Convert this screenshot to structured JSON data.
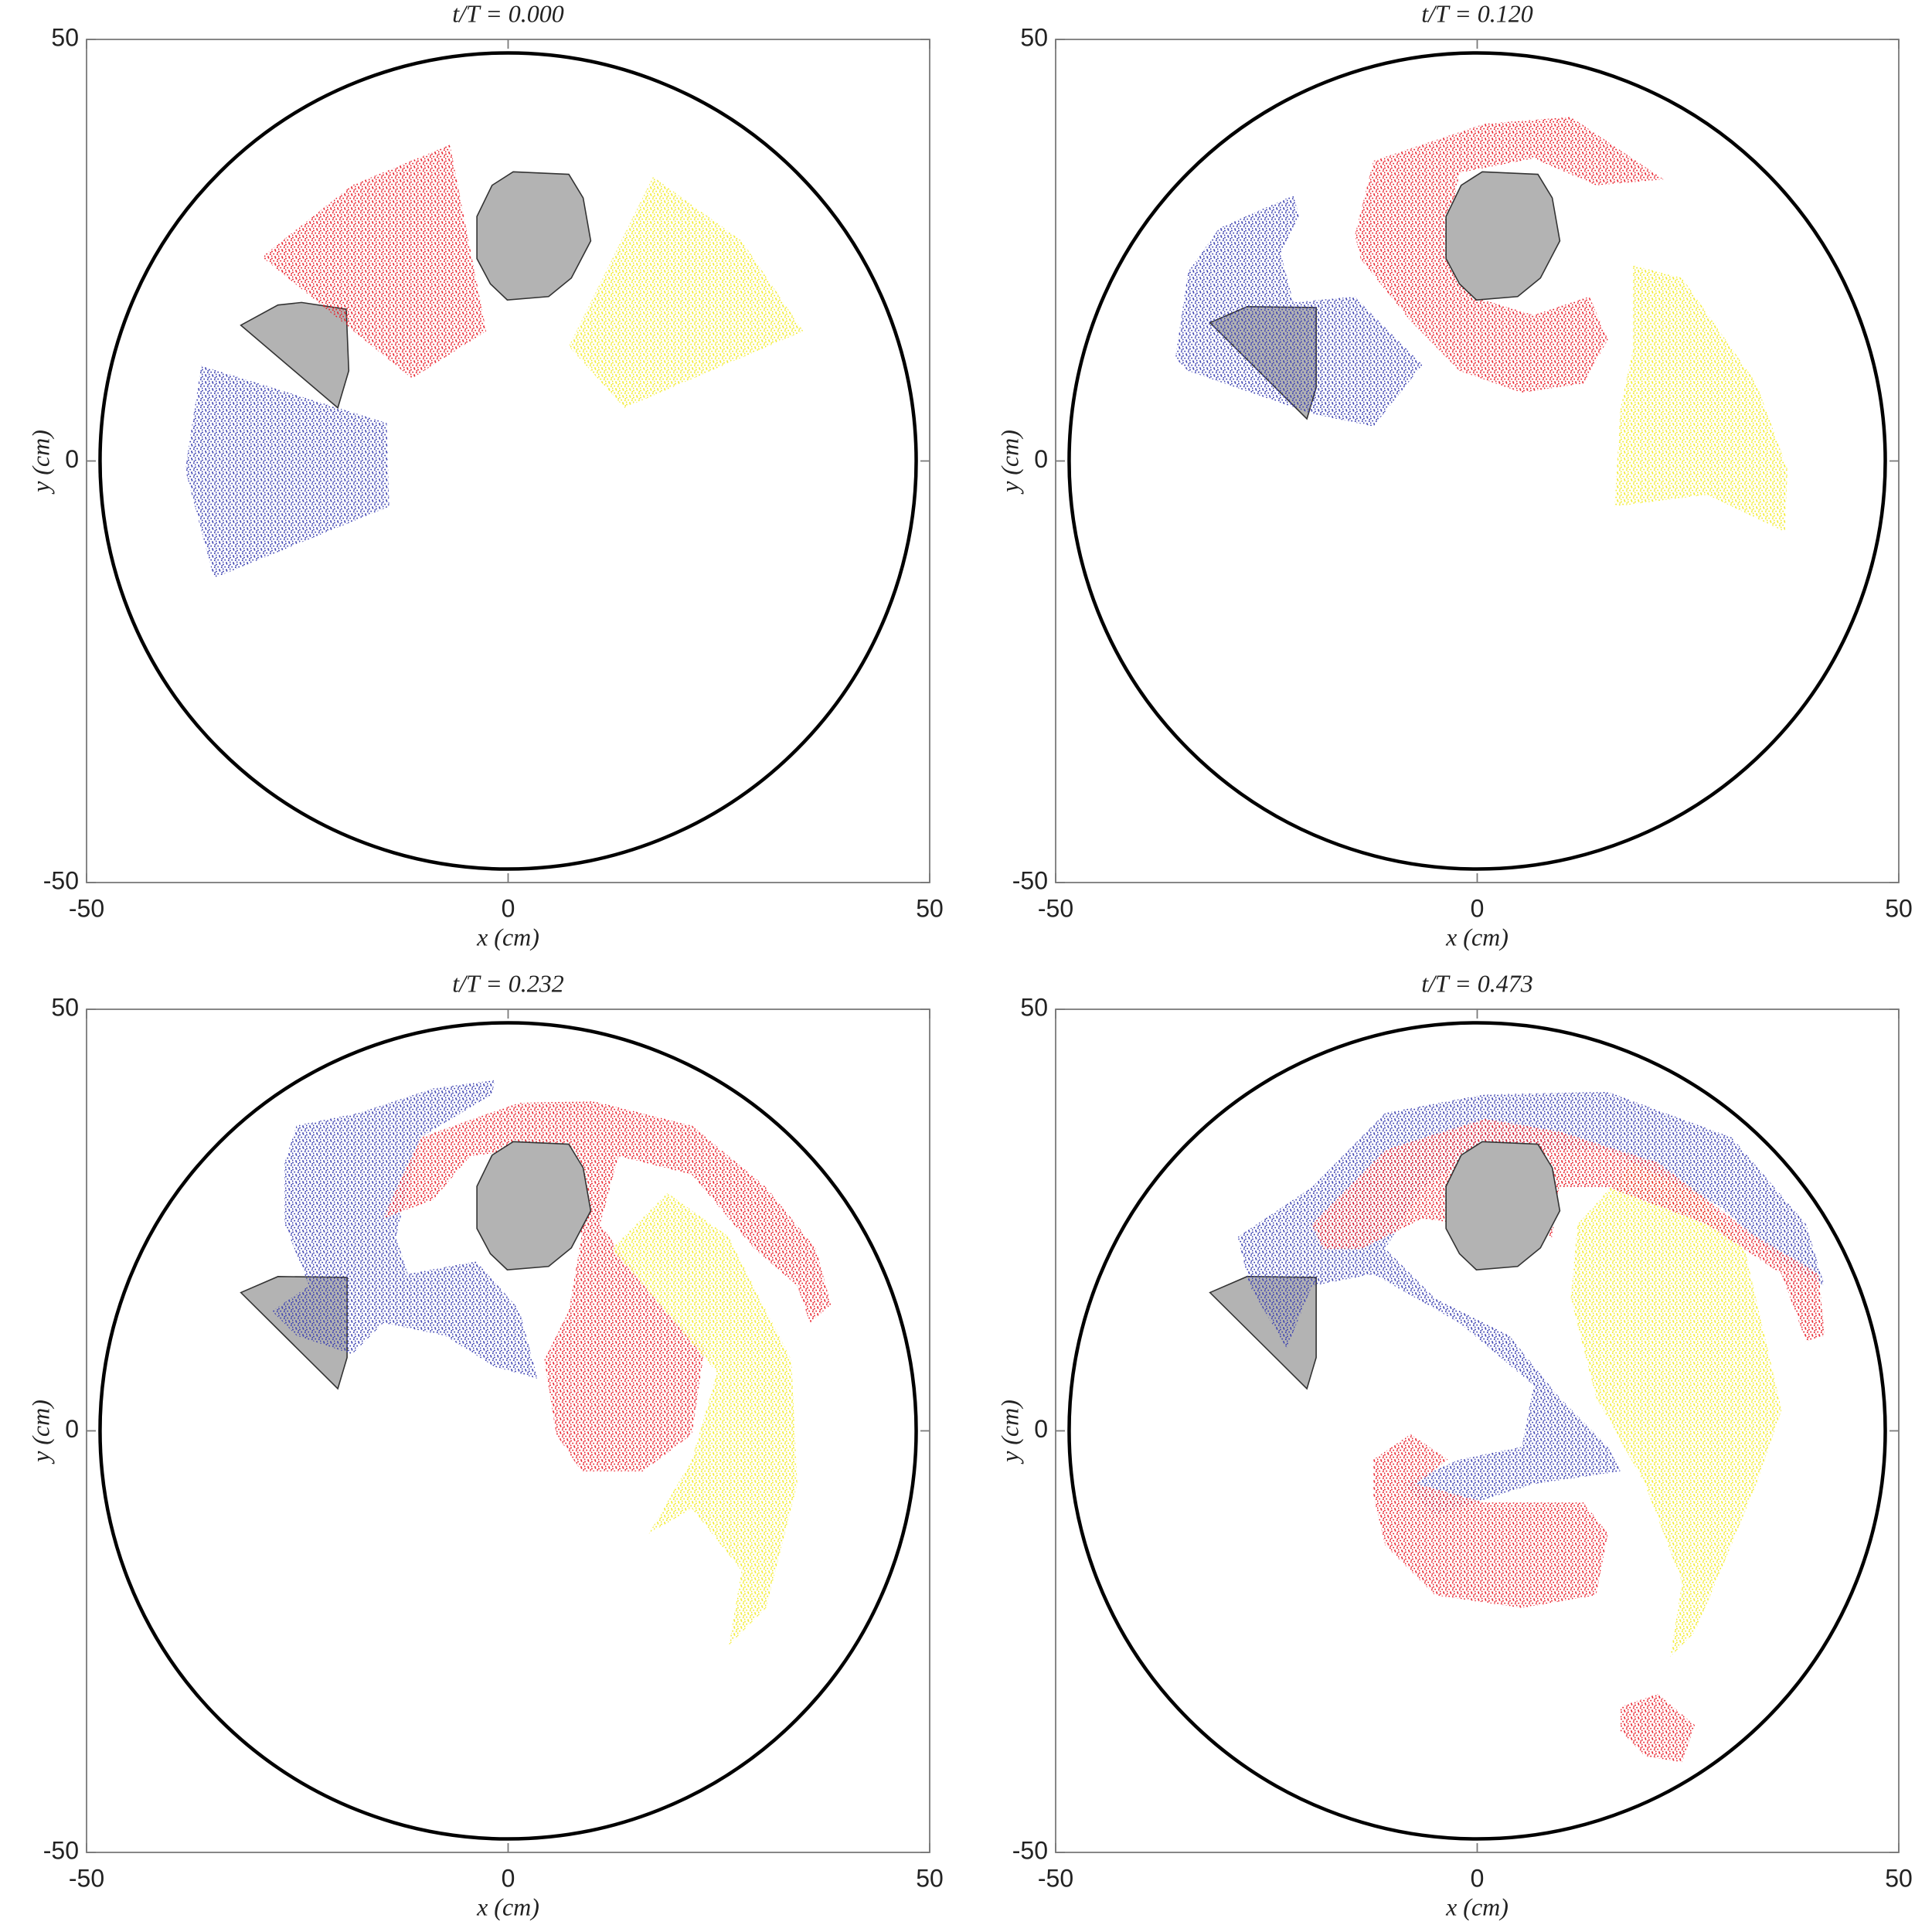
{
  "chart_data": [
    {
      "type": "scatter",
      "title": "t/T = 0.000",
      "xlabel": "x (cm)",
      "ylabel": "y (cm)",
      "xlim": [
        -50,
        50
      ],
      "ylim": [
        -50,
        50
      ],
      "xticks": [
        -50,
        0,
        50
      ],
      "yticks": [
        -50,
        0,
        50
      ],
      "boundary": {
        "r": 48.4,
        "color": "#000000"
      },
      "series": [
        {
          "color": "#b3b3b3",
          "edgecolor": "#333333",
          "x": [
            -31.7,
            -27.3,
            -24.5,
            -19.2,
            -18.9,
            -20.2
          ],
          "y": [
            16.1,
            18.5,
            18.8,
            18.0,
            10.7,
            6.3
          ]
        },
        {
          "color": "#e8202a",
          "x": [
            -29.2,
            -18.5,
            -6.9,
            -2.6,
            -11.4
          ],
          "y": [
            24.2,
            32.7,
            37.5,
            15.4,
            9.8
          ]
        },
        {
          "color": "#f2ea2a",
          "x": [
            7.2,
            17.2,
            27.7,
            35.0,
            13.8
          ],
          "y": [
            13.6,
            33.7,
            26.1,
            15.4,
            6.3
          ]
        },
        {
          "color": "#3a3fb0",
          "x": [
            -36.4,
            -14.4,
            -14.1,
            -34.9,
            -38.3
          ],
          "y": [
            11.3,
            4.5,
            -5.4,
            -13.9,
            -1.0
          ]
        },
        {
          "color": "#b3b3b3",
          "edgecolor": "#333333",
          "x": [
            -3.7,
            -1.9,
            0.6,
            7.2,
            8.9,
            9.8,
            7.5,
            4.8,
            -0.1,
            -2.1,
            -3.7
          ],
          "y": [
            29.0,
            32.7,
            34.3,
            34.0,
            31.2,
            26.1,
            21.7,
            19.5,
            19.1,
            21.0,
            24.0
          ]
        }
      ]
    },
    {
      "type": "scatter",
      "title": "t/T = 0.120",
      "xlabel": "x (cm)",
      "ylabel": "y (cm)",
      "xlim": [
        -50,
        50
      ],
      "ylim": [
        -50,
        50
      ],
      "xticks": [
        -50,
        0,
        50
      ],
      "yticks": [
        -50,
        0,
        50
      ],
      "boundary": {
        "r": 48.4,
        "color": "#000000"
      },
      "series": [
        {
          "color": "#b3b3b3",
          "edgecolor": "#333333",
          "x": [
            -31.7,
            -27.3,
            -19.1,
            -19.1,
            -20.2
          ],
          "y": [
            16.4,
            18.3,
            18.2,
            8.7,
            5.0
          ]
        },
        {
          "color": "#3a3fb0",
          "x": [
            -35.8,
            -34.3,
            -30.6,
            -21.8,
            -21.1,
            -23.3,
            -21.8,
            -14.5,
            -6.5,
            -12.3,
            -19.6,
            -34.3
          ],
          "y": [
            12.2,
            22.4,
            27.6,
            31.5,
            29.0,
            24.6,
            18.8,
            19.5,
            11.4,
            4.1,
            5.6,
            10.7
          ]
        },
        {
          "color": "#e8202a",
          "x": [
            -14.5,
            -12.3,
            0.9,
            11.1,
            22.1,
            14.1,
            6.7,
            -2.1,
            -3.8,
            -0.6,
            6.7,
            13.3,
            15.5,
            12.6,
            5.3,
            -2.1,
            -7.9,
            -13.8
          ],
          "y": [
            26.8,
            35.6,
            40.0,
            40.8,
            33.4,
            32.7,
            35.9,
            34.2,
            25.4,
            19.5,
            17.3,
            19.5,
            14.4,
            9.2,
            8.1,
            10.7,
            16.6,
            23.9
          ]
        },
        {
          "color": "#f2ea2a",
          "x": [
            18.5,
            24.3,
            33.1,
            36.8,
            36.5,
            27.3,
            16.3,
            17.0,
            18.5
          ],
          "y": [
            23.2,
            21.7,
            9.2,
            -1.0,
            -8.4,
            -4.0,
            -5.4,
            6.3,
            13.3
          ]
        },
        {
          "color": "#b3b3b3",
          "edgecolor": "#333333",
          "x": [
            -3.7,
            -1.9,
            0.6,
            7.2,
            8.9,
            9.8,
            7.5,
            4.8,
            -0.1,
            -2.1,
            -3.7
          ],
          "y": [
            29.0,
            32.7,
            34.3,
            34.0,
            31.2,
            26.1,
            21.7,
            19.5,
            19.1,
            21.0,
            24.0
          ]
        }
      ]
    },
    {
      "type": "scatter",
      "title": "t/T = 0.232",
      "xlabel": "x (cm)",
      "ylabel": "y (cm)",
      "xlim": [
        -50,
        50
      ],
      "ylim": [
        -50,
        50
      ],
      "xticks": [
        -50,
        0,
        50
      ],
      "yticks": [
        -50,
        0,
        50
      ],
      "boundary": {
        "r": 48.4,
        "color": "#000000"
      },
      "series": [
        {
          "color": "#b3b3b3",
          "edgecolor": "#333333",
          "x": [
            -31.7,
            -27.3,
            -19.1,
            -19.1,
            -20.2
          ],
          "y": [
            16.4,
            18.3,
            18.2,
            8.7,
            5.0
          ]
        },
        {
          "color": "#3a3fb0",
          "x": [
            -26.5,
            -25.1,
            -17.7,
            -8.9,
            -1.6,
            -1.9,
            -10.4,
            -11.9,
            -13.3,
            -11.9,
            -3.8,
            1.3,
            3.5,
            -1.6,
            -7.5,
            -14.8,
            -18.5,
            -25.1,
            -28.0,
            -23.6,
            -26.5
          ],
          "y": [
            31.8,
            36.2,
            37.7,
            40.6,
            41.6,
            39.9,
            34.8,
            28.9,
            23.0,
            18.6,
            20.1,
            14.4,
            6.2,
            7.6,
            11.3,
            12.8,
            9.1,
            11.3,
            14.2,
            17.2,
            24.5
          ]
        },
        {
          "color": "#e8202a",
          "x": [
            -14.8,
            -10.4,
            1.3,
            10.1,
            21.8,
            30.6,
            36.5,
            38.3,
            35.8,
            34.3,
            29.2,
            21.8,
            13.1,
            10.9,
            17.4,
            23.3,
            21.8,
            16.0,
            8.7,
            5.7,
            4.3,
            7.2,
            8.7,
            7.2,
            1.3,
            -4.5,
            -8.9
          ],
          "y": [
            25.2,
            34.8,
            38.9,
            39.1,
            36.2,
            28.9,
            21.6,
            15.0,
            12.8,
            17.2,
            21.6,
            30.4,
            32.6,
            24.5,
            15.7,
            9.8,
            -0.4,
            -4.8,
            -4.8,
            -0.4,
            8.4,
            14.2,
            23.0,
            30.4,
            33.3,
            32.6,
            27.4
          ]
        },
        {
          "color": "#f2ea2a",
          "x": [
            12.3,
            18.9,
            26.2,
            33.6,
            34.3,
            30.6,
            26.2,
            27.7,
            21.8,
            16.7,
            21.8,
            24.8,
            17.4
          ],
          "y": [
            21.6,
            28.2,
            23.0,
            8.4,
            -6.3,
            -21.0,
            -25.4,
            -16.6,
            -9.2,
            -12.2,
            -3.4,
            6.9,
            15.7
          ]
        },
        {
          "color": "#b3b3b3",
          "edgecolor": "#333333",
          "x": [
            -3.7,
            -1.9,
            0.6,
            7.2,
            8.9,
            9.8,
            7.5,
            4.8,
            -0.1,
            -2.1,
            -3.7
          ],
          "y": [
            29.0,
            32.7,
            34.3,
            34.0,
            31.2,
            26.1,
            21.7,
            19.5,
            19.1,
            21.0,
            24.0
          ]
        }
      ]
    },
    {
      "type": "scatter",
      "title": "t/T = 0.473",
      "xlabel": "x (cm)",
      "ylabel": "y (cm)",
      "xlim": [
        -50,
        50
      ],
      "ylim": [
        -50,
        50
      ],
      "xticks": [
        -50,
        0,
        50
      ],
      "yticks": [
        -50,
        0,
        50
      ],
      "boundary": {
        "r": 48.4,
        "color": "#000000"
      },
      "series": [
        {
          "color": "#b3b3b3",
          "edgecolor": "#333333",
          "x": [
            -31.7,
            -27.3,
            -19.1,
            -19.1,
            -20.2
          ],
          "y": [
            16.4,
            18.3,
            18.2,
            8.7,
            5.0
          ]
        },
        {
          "color": "#f2ea2a",
          "x": [
            11.9,
            18.5,
            25.8,
            31.7,
            36.1,
            33.1,
            29.5,
            25.8,
            22.9,
            24.3,
            19.9,
            14.1,
            11.1
          ],
          "y": [
            24.5,
            31.8,
            28.9,
            21.6,
            2.5,
            -6.3,
            -15.1,
            -23.9,
            -26.8,
            -18.0,
            -6.3,
            4.0,
            15.7
          ]
        },
        {
          "color": "#3a3fb0",
          "x": [
            -28.4,
            -19.6,
            -10.9,
            0.9,
            15.5,
            30.2,
            39.0,
            41.2,
            36.1,
            28.7,
            15.5,
            0.9,
            -6.5,
            -10.9,
            -5.0,
            3.8,
            9.7,
            15.5,
            17.0,
            6.7,
            -5.0,
            -8.7,
            -2.1,
            5.3,
            6.7,
            -2.1,
            -12.3,
            -19.6,
            -22.6,
            -27.0
          ],
          "y": [
            23.0,
            28.9,
            37.7,
            39.9,
            40.2,
            34.8,
            24.5,
            17.2,
            20.1,
            26.7,
            33.3,
            33.3,
            28.9,
            21.6,
            15.7,
            11.3,
            4.0,
            -1.9,
            -4.8,
            -6.3,
            -10.0,
            -6.3,
            -3.4,
            -1.9,
            5.4,
            12.8,
            18.6,
            17.2,
            9.8,
            17.2
          ]
        },
        {
          "color": "#e8202a",
          "x": [
            -19.6,
            -10.9,
            0.9,
            9.7,
            21.4,
            33.1,
            40.5,
            41.2,
            39.0,
            36.1,
            27.3,
            15.5,
            9.7,
            8.9,
            -6.5,
            -13.8,
            -18.2
          ],
          "y": [
            24.5,
            33.3,
            37.0,
            35.5,
            31.8,
            23.0,
            18.6,
            11.3,
            10.6,
            18.6,
            24.5,
            28.9,
            28.9,
            23.0,
            25.2,
            21.6,
            21.6
          ]
        },
        {
          "color": "#e8202a",
          "x": [
            -12.3,
            -7.9,
            -3.5,
            -7.2,
            0.9,
            12.6,
            15.5,
            14.1,
            5.3,
            -5.0,
            -10.9,
            -12.3
          ],
          "y": [
            -3.4,
            -0.4,
            -3.4,
            -6.3,
            -8.5,
            -8.5,
            -12.2,
            -19.5,
            -21.0,
            -19.5,
            -13.6,
            -7.8
          ]
        },
        {
          "color": "#e8202a",
          "x": [
            17.0,
            21.4,
            25.8,
            24.3,
            19.9,
            17.0
          ],
          "y": [
            -32.7,
            -31.2,
            -34.9,
            -39.3,
            -38.6,
            -35.6
          ]
        },
        {
          "color": "#b3b3b3",
          "edgecolor": "#333333",
          "x": [
            -3.7,
            -1.9,
            0.6,
            7.2,
            8.9,
            9.8,
            7.5,
            4.8,
            -0.1,
            -2.1,
            -3.7
          ],
          "y": [
            29.0,
            32.7,
            34.3,
            34.0,
            31.2,
            26.1,
            21.7,
            19.5,
            19.1,
            21.0,
            24.0
          ]
        }
      ]
    }
  ]
}
